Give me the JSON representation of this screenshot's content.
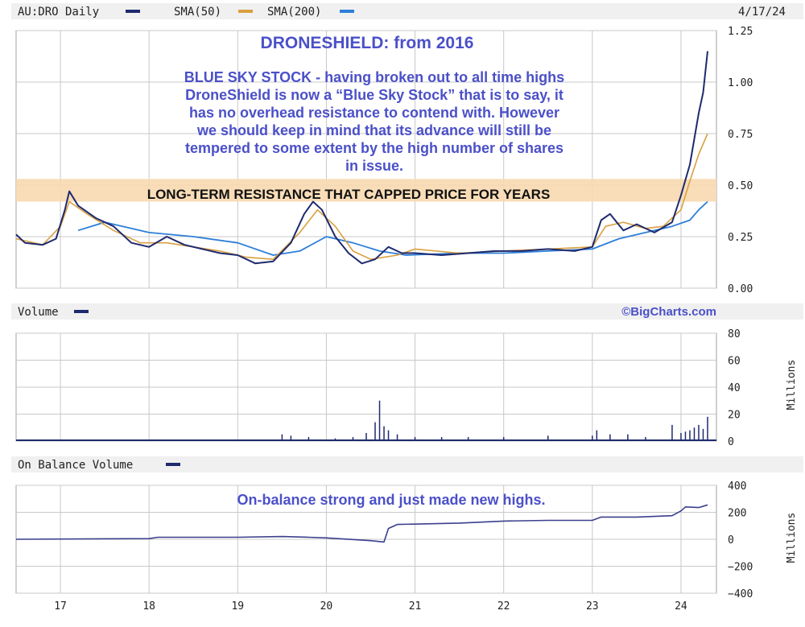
{
  "header": {
    "ticker_label": "AU:DRO Daily",
    "sma50_label": "SMA(50)",
    "sma200_label": "SMA(200)",
    "date": "4/17/24"
  },
  "colors": {
    "price": "#1f2a6e",
    "sma50": "#d9a040",
    "sma200": "#2d7fd8",
    "volume": "#1f2a6e",
    "obv": "#3b3f8c",
    "annotation_text": "#4b50c8",
    "resistance_band": "#f7d9b0",
    "header_bar": "#f0f0f0",
    "grid": "#c8c8c8",
    "frame": "#a0a0a0"
  },
  "annotations": {
    "title": "DRONESHIELD: from 2016",
    "body_lines": [
      "BLUE SKY STOCK - having broken out to all time highs",
      "DroneShield is now a “Blue Sky Stock” that is to say, it",
      "has no overhead resistance to contend with. However",
      "we should keep in mind that its advance will still be",
      "tempered to some extent by the high number of shares",
      "in issue."
    ],
    "resistance_label": "LONG-TERM RESISTANCE THAT CAPPED PRICE FOR YEARS",
    "obv_note": "On-balance strong and just made new highs."
  },
  "volume_panel": {
    "label": "Volume",
    "credit": "©BigCharts.com",
    "axis_unit": "Millions"
  },
  "obv_panel": {
    "label": "On Balance Volume",
    "axis_unit": "Millions"
  },
  "chart_data": [
    {
      "type": "line",
      "title": "",
      "series": [
        {
          "name": "AU:DRO Daily",
          "x": [
            16.5,
            16.6,
            16.8,
            16.95,
            17.05,
            17.1,
            17.2,
            17.4,
            17.6,
            17.8,
            18.0,
            18.2,
            18.4,
            18.6,
            18.8,
            19.0,
            19.2,
            19.4,
            19.6,
            19.75,
            19.85,
            19.95,
            20.1,
            20.25,
            20.4,
            20.55,
            20.7,
            20.85,
            21.0,
            21.3,
            21.6,
            21.9,
            22.2,
            22.5,
            22.8,
            23.0,
            23.1,
            23.2,
            23.35,
            23.5,
            23.7,
            23.9,
            24.0,
            24.1,
            24.2,
            24.25,
            24.3
          ],
          "y": [
            0.26,
            0.22,
            0.21,
            0.24,
            0.38,
            0.47,
            0.4,
            0.34,
            0.3,
            0.22,
            0.2,
            0.25,
            0.21,
            0.19,
            0.17,
            0.16,
            0.12,
            0.13,
            0.22,
            0.36,
            0.42,
            0.38,
            0.25,
            0.17,
            0.12,
            0.14,
            0.2,
            0.17,
            0.17,
            0.16,
            0.17,
            0.18,
            0.18,
            0.19,
            0.18,
            0.2,
            0.33,
            0.36,
            0.28,
            0.31,
            0.27,
            0.32,
            0.45,
            0.6,
            0.85,
            0.95,
            1.15
          ]
        },
        {
          "name": "SMA(50)",
          "x": [
            16.5,
            16.8,
            17.0,
            17.1,
            17.3,
            17.6,
            17.9,
            18.2,
            18.5,
            18.8,
            19.1,
            19.4,
            19.7,
            19.9,
            20.1,
            20.3,
            20.5,
            20.8,
            21.0,
            21.5,
            22.0,
            22.5,
            23.0,
            23.15,
            23.35,
            23.6,
            23.8,
            24.0,
            24.1,
            24.2,
            24.3
          ],
          "y": [
            0.24,
            0.21,
            0.3,
            0.42,
            0.36,
            0.28,
            0.22,
            0.22,
            0.2,
            0.18,
            0.15,
            0.14,
            0.27,
            0.38,
            0.3,
            0.18,
            0.14,
            0.16,
            0.19,
            0.17,
            0.18,
            0.19,
            0.2,
            0.3,
            0.32,
            0.29,
            0.3,
            0.38,
            0.52,
            0.65,
            0.75
          ]
        },
        {
          "name": "SMA(200)",
          "x": [
            17.2,
            17.5,
            18.0,
            18.5,
            19.0,
            19.4,
            19.7,
            20.0,
            20.3,
            20.6,
            20.9,
            21.5,
            22.0,
            22.5,
            23.0,
            23.3,
            23.6,
            23.9,
            24.1,
            24.2,
            24.3
          ],
          "y": [
            0.28,
            0.32,
            0.27,
            0.25,
            0.22,
            0.16,
            0.18,
            0.25,
            0.22,
            0.18,
            0.16,
            0.17,
            0.17,
            0.18,
            0.19,
            0.24,
            0.27,
            0.3,
            0.33,
            0.38,
            0.42
          ]
        }
      ],
      "xticks": [
        "17",
        "18",
        "19",
        "20",
        "21",
        "22",
        "23",
        "24"
      ],
      "xlim": [
        16.5,
        24.4
      ],
      "ylim": [
        0,
        1.25
      ],
      "yticks": [
        "0.00",
        "0.25",
        "0.50",
        "0.75",
        "1.00",
        "1.25"
      ],
      "resistance_band": [
        0.42,
        0.53
      ],
      "grid": true
    },
    {
      "type": "bar",
      "title": "",
      "ylabel": "Millions",
      "ylim": [
        0,
        80
      ],
      "yticks": [
        "0",
        "20",
        "40",
        "60",
        "80"
      ],
      "x": [
        17.0,
        17.5,
        18.0,
        18.5,
        19.0,
        19.5,
        19.6,
        19.8,
        20.1,
        20.3,
        20.45,
        20.55,
        20.6,
        20.65,
        20.7,
        20.8,
        21.0,
        21.3,
        21.6,
        22.0,
        22.5,
        23.0,
        23.05,
        23.2,
        23.4,
        23.6,
        23.9,
        24.0,
        24.05,
        24.1,
        24.15,
        24.2,
        24.25,
        24.3
      ],
      "values": [
        1,
        1,
        1,
        1,
        1,
        5,
        4,
        3,
        2,
        3,
        6,
        14,
        30,
        11,
        8,
        5,
        3,
        3,
        3,
        3,
        4,
        4,
        8,
        5,
        5,
        3,
        12,
        6,
        7,
        8,
        10,
        12,
        9,
        18
      ]
    },
    {
      "type": "line",
      "title": "",
      "ylabel": "Millions",
      "ylim": [
        -400,
        400
      ],
      "yticks": [
        "400",
        "200",
        "0",
        "−200",
        "−400"
      ],
      "series": [
        {
          "name": "On Balance Volume",
          "x": [
            16.5,
            18.0,
            18.1,
            19.0,
            19.5,
            19.8,
            20.0,
            20.5,
            20.65,
            20.7,
            20.8,
            21.5,
            22.0,
            22.5,
            23.0,
            23.1,
            23.5,
            23.9,
            24.0,
            24.05,
            24.2,
            24.3
          ],
          "y": [
            0,
            5,
            15,
            15,
            20,
            15,
            10,
            -10,
            -20,
            80,
            110,
            120,
            135,
            140,
            140,
            165,
            165,
            175,
            210,
            240,
            235,
            255
          ]
        }
      ]
    }
  ]
}
